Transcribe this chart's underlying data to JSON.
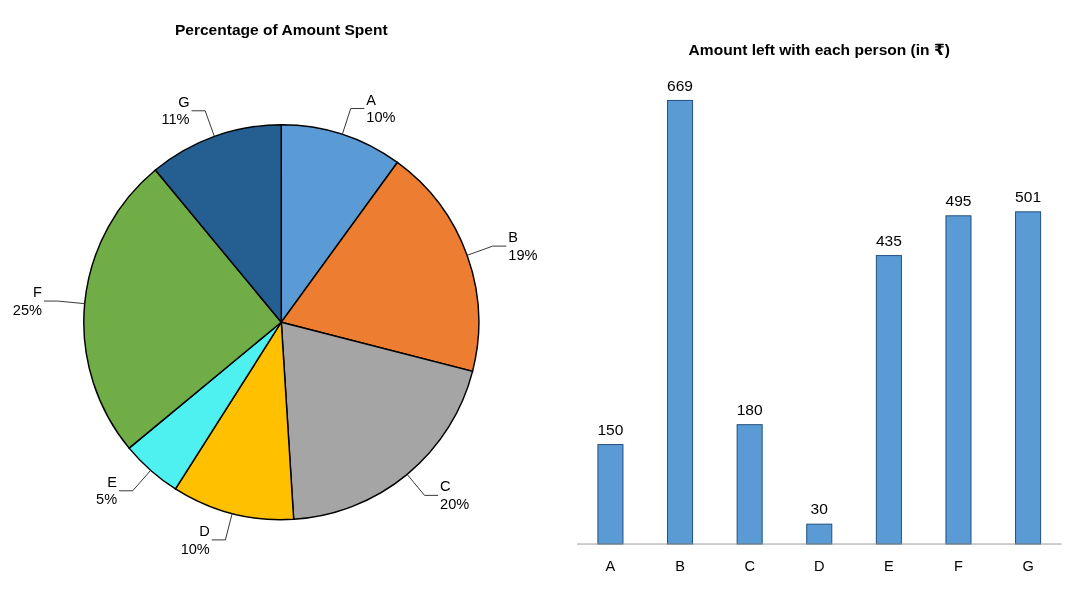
{
  "chart_data": [
    {
      "type": "pie",
      "title": "Percentage of Amount Spent",
      "categories": [
        "A",
        "B",
        "C",
        "D",
        "E",
        "F",
        "G"
      ],
      "values": [
        10,
        19,
        20,
        10,
        5,
        25,
        11
      ],
      "value_labels": [
        "10%",
        "19%",
        "20%",
        "10%",
        "5%",
        "25%",
        "11%"
      ],
      "colors": [
        "#5b9bd5",
        "#ed7d31",
        "#a5a5a5",
        "#ffc000",
        "#4ff0f0",
        "#70ad47",
        "#255e91"
      ]
    },
    {
      "type": "bar",
      "title": "Amount left with each person (in ₹)",
      "categories": [
        "A",
        "B",
        "C",
        "D",
        "E",
        "F",
        "G"
      ],
      "values": [
        150,
        669,
        180,
        30,
        435,
        495,
        501
      ],
      "color": "#5b9bd5",
      "data_labels": true
    }
  ]
}
